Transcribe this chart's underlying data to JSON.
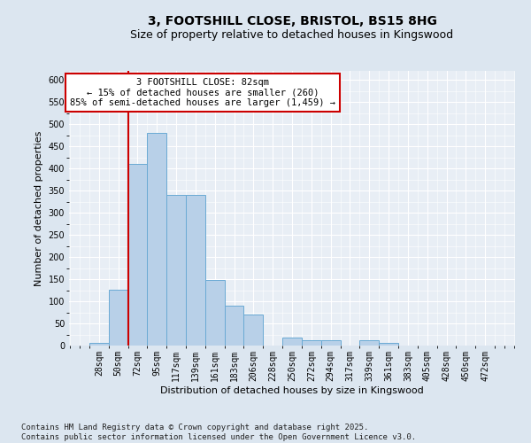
{
  "title_line1": "3, FOOTSHILL CLOSE, BRISTOL, BS15 8HG",
  "title_line2": "Size of property relative to detached houses in Kingswood",
  "xlabel": "Distribution of detached houses by size in Kingswood",
  "ylabel": "Number of detached properties",
  "categories": [
    "28sqm",
    "50sqm",
    "72sqm",
    "95sqm",
    "117sqm",
    "139sqm",
    "161sqm",
    "183sqm",
    "206sqm",
    "228sqm",
    "250sqm",
    "272sqm",
    "294sqm",
    "317sqm",
    "339sqm",
    "361sqm",
    "383sqm",
    "405sqm",
    "428sqm",
    "450sqm",
    "472sqm"
  ],
  "values": [
    7,
    127,
    410,
    480,
    340,
    340,
    148,
    90,
    70,
    0,
    18,
    12,
    12,
    0,
    13,
    6,
    0,
    0,
    0,
    0,
    0
  ],
  "bar_color": "#b8d0e8",
  "bar_edge_color": "#6aaad4",
  "vline_color": "#cc0000",
  "annotation_text": "3 FOOTSHILL CLOSE: 82sqm\n← 15% of detached houses are smaller (260)\n85% of semi-detached houses are larger (1,459) →",
  "annotation_box_color": "#ffffff",
  "annotation_box_edge": "#cc0000",
  "ylim": [
    0,
    620
  ],
  "yticks": [
    0,
    50,
    100,
    150,
    200,
    250,
    300,
    350,
    400,
    450,
    500,
    550,
    600
  ],
  "bg_color": "#dce6f0",
  "plot_bg_color": "#e8eef5",
  "grid_color": "#ffffff",
  "footer_text": "Contains HM Land Registry data © Crown copyright and database right 2025.\nContains public sector information licensed under the Open Government Licence v3.0.",
  "title_fontsize": 10,
  "subtitle_fontsize": 9,
  "axis_label_fontsize": 8,
  "tick_fontsize": 7,
  "annotation_fontsize": 7.5,
  "footer_fontsize": 6.5
}
